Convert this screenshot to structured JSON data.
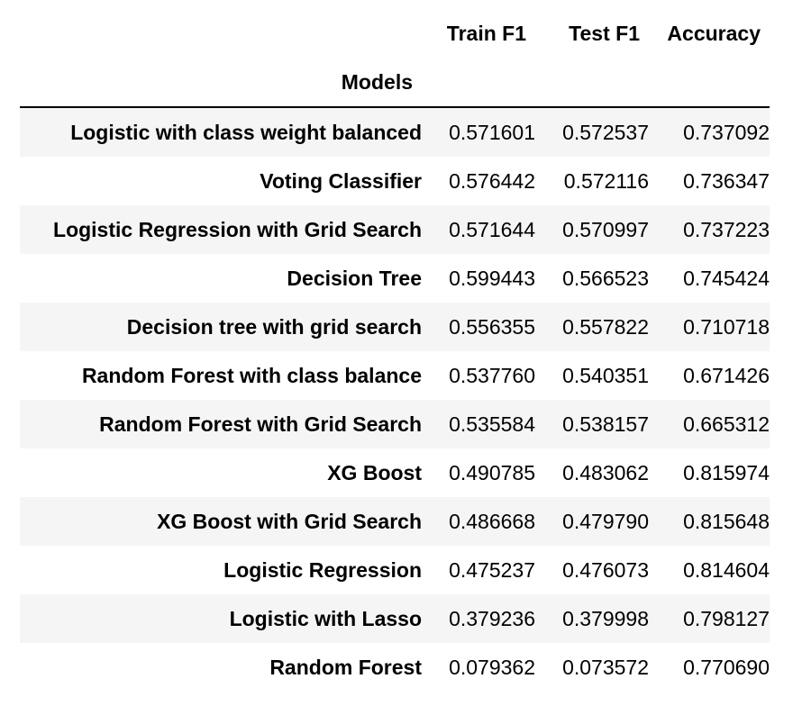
{
  "table": {
    "columns": [
      "Train F1",
      "Test F1",
      "Accuracy"
    ],
    "index_name": "Models",
    "rows": [
      {
        "model": "Logistic with class weight balanced",
        "train_f1": "0.571601",
        "test_f1": "0.572537",
        "accuracy": "0.737092"
      },
      {
        "model": "Voting Classifier",
        "train_f1": "0.576442",
        "test_f1": "0.572116",
        "accuracy": "0.736347"
      },
      {
        "model": "Logistic Regression with Grid Search",
        "train_f1": "0.571644",
        "test_f1": "0.570997",
        "accuracy": "0.737223"
      },
      {
        "model": "Decision Tree",
        "train_f1": "0.599443",
        "test_f1": "0.566523",
        "accuracy": "0.745424"
      },
      {
        "model": "Decision tree with grid search",
        "train_f1": "0.556355",
        "test_f1": "0.557822",
        "accuracy": "0.710718"
      },
      {
        "model": "Random Forest with class balance",
        "train_f1": "0.537760",
        "test_f1": "0.540351",
        "accuracy": "0.671426"
      },
      {
        "model": "Random Forest with Grid Search",
        "train_f1": "0.535584",
        "test_f1": "0.538157",
        "accuracy": "0.665312"
      },
      {
        "model": "XG Boost",
        "train_f1": "0.490785",
        "test_f1": "0.483062",
        "accuracy": "0.815974"
      },
      {
        "model": "XG Boost with Grid Search",
        "train_f1": "0.486668",
        "test_f1": "0.479790",
        "accuracy": "0.815648"
      },
      {
        "model": "Logistic Regression",
        "train_f1": "0.475237",
        "test_f1": "0.476073",
        "accuracy": "0.814604"
      },
      {
        "model": "Logistic with Lasso",
        "train_f1": "0.379236",
        "test_f1": "0.379998",
        "accuracy": "0.798127"
      },
      {
        "model": "Random Forest",
        "train_f1": "0.079362",
        "test_f1": "0.073572",
        "accuracy": "0.770690"
      }
    ]
  },
  "colors": {
    "stripe": "#f5f5f5",
    "text": "#000000",
    "rule": "#000000"
  }
}
